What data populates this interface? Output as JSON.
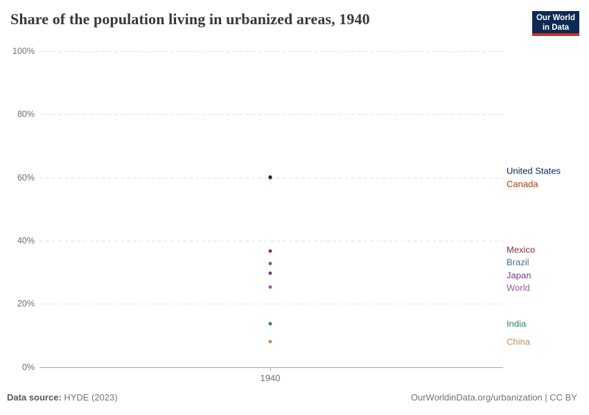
{
  "header": {
    "title": "Share of the population living in urbanized areas, 1940",
    "logo": {
      "line1": "Our World",
      "line2": "in Data",
      "bg_color": "#0d2a55",
      "bar_color": "#c4322b"
    }
  },
  "chart_data": {
    "type": "scatter",
    "title": "Share of the population living in urbanized areas, 1940",
    "xlabel": "",
    "ylabel": "",
    "x": [
      1940
    ],
    "x_tick_label": "1940",
    "ylim": [
      0,
      100
    ],
    "grid": "dashed horizontal gridlines",
    "legend_position": "right",
    "y_ticks": [
      {
        "value": 100,
        "label": "100%"
      },
      {
        "value": 80,
        "label": "80%"
      },
      {
        "value": 60,
        "label": "60%"
      },
      {
        "value": 40,
        "label": "40%"
      },
      {
        "value": 20,
        "label": "20%"
      },
      {
        "value": 0,
        "label": "0%"
      }
    ],
    "series": [
      {
        "name": "United States",
        "year": 1940,
        "value": 60.1,
        "color": "#00295B"
      },
      {
        "name": "Canada",
        "year": 1940,
        "value": 59.9,
        "color": "#B13507"
      },
      {
        "name": "Mexico",
        "year": 1940,
        "value": 36.8,
        "color": "#883039"
      },
      {
        "name": "Brazil",
        "year": 1940,
        "value": 32.8,
        "color": "#4C6A9C"
      },
      {
        "name": "Japan",
        "year": 1940,
        "value": 29.7,
        "color": "#6D3E91"
      },
      {
        "name": "World",
        "year": 1940,
        "value": 25.2,
        "color": "#A2559C"
      },
      {
        "name": "India",
        "year": 1940,
        "value": 13.6,
        "color": "#2C8465"
      },
      {
        "name": "China",
        "year": 1940,
        "value": 7.9,
        "color": "#BC8E5A"
      }
    ]
  },
  "footer": {
    "source_label": "Data source:",
    "source_value": " HYDE (2023)",
    "attribution": "OurWorldinData.org/urbanization | CC BY"
  }
}
